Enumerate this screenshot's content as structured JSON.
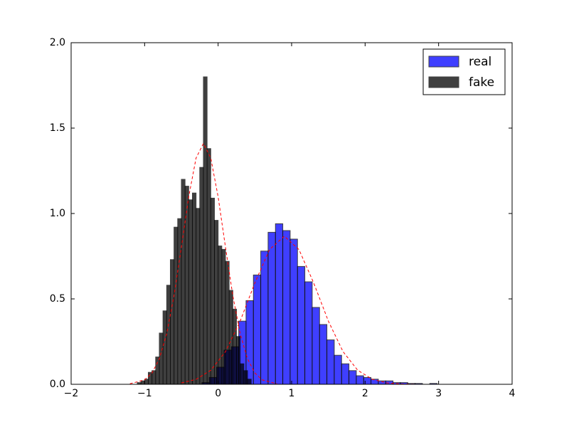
{
  "chart_data": {
    "type": "histogram",
    "xlim": [
      -2,
      4
    ],
    "ylim": [
      0,
      2
    ],
    "xticks": [
      {
        "value": -2,
        "label": "−2"
      },
      {
        "value": -1,
        "label": "−1"
      },
      0,
      1,
      2,
      3,
      4
    ],
    "yticks": [
      {
        "value": 0,
        "label": "0.0"
      },
      {
        "value": 0.5,
        "label": "0.5"
      },
      {
        "value": 1,
        "label": "1.0"
      },
      {
        "value": 1.5,
        "label": "1.5"
      },
      {
        "value": 2,
        "label": "2.0"
      }
    ],
    "legend": "upper right",
    "series": [
      {
        "name": "real",
        "color": "#0000ff",
        "alpha": 0.75,
        "bins": [
          -0.22,
          -0.12,
          -0.02,
          0.08,
          0.18,
          0.28,
          0.38,
          0.48,
          0.58,
          0.68,
          0.78,
          0.88,
          0.98,
          1.08,
          1.18,
          1.28,
          1.38,
          1.48,
          1.58,
          1.68,
          1.78,
          1.88,
          1.98,
          2.08,
          2.18,
          2.28,
          2.38,
          2.48,
          2.58,
          2.68,
          2.78,
          2.88,
          2.98
        ],
        "values": [
          0.01,
          0.04,
          0.1,
          0.2,
          0.22,
          0.37,
          0.49,
          0.64,
          0.78,
          0.89,
          0.94,
          0.9,
          0.85,
          0.69,
          0.6,
          0.45,
          0.35,
          0.26,
          0.17,
          0.12,
          0.08,
          0.05,
          0.04,
          0.03,
          0.02,
          0.02,
          0.01,
          0.01,
          0.005,
          0.005,
          0,
          0.005
        ]
      },
      {
        "name": "fake",
        "color": "#000000",
        "alpha": 0.75,
        "bins": [
          -1.1,
          -1.05,
          -1.0,
          -0.95,
          -0.9,
          -0.85,
          -0.8,
          -0.75,
          -0.7,
          -0.65,
          -0.6,
          -0.55,
          -0.5,
          -0.45,
          -0.4,
          -0.35,
          -0.3,
          -0.25,
          -0.2,
          -0.15,
          -0.1,
          -0.05,
          0.0,
          0.05,
          0.1,
          0.15,
          0.2,
          0.25,
          0.3,
          0.35,
          0.4,
          0.45
        ],
        "values": [
          0.01,
          0.02,
          0.03,
          0.07,
          0.08,
          0.16,
          0.3,
          0.43,
          0.58,
          0.73,
          0.92,
          0.97,
          1.2,
          1.16,
          1.08,
          1.12,
          1.03,
          1.27,
          1.8,
          1.38,
          1.09,
          0.96,
          0.81,
          0.79,
          0.72,
          0.55,
          0.44,
          0.28,
          0.12,
          0.08,
          0.03
        ]
      }
    ],
    "curves": [
      {
        "color": "#ff0000",
        "x": [
          -0.5,
          -0.3,
          -0.1,
          0.1,
          0.3,
          0.5,
          0.7,
          0.9,
          1.1,
          1.3,
          1.5,
          1.7,
          1.9,
          2.1,
          2.3,
          2.5,
          2.7
        ],
        "values": [
          0.008,
          0.029,
          0.082,
          0.191,
          0.37,
          0.594,
          0.789,
          0.867,
          0.789,
          0.594,
          0.37,
          0.191,
          0.082,
          0.029,
          0.008,
          0.002,
          0
        ]
      },
      {
        "color": "#ff0000",
        "x": [
          -1.2,
          -1.0,
          -0.9,
          -0.8,
          -0.7,
          -0.6,
          -0.5,
          -0.4,
          -0.3,
          -0.2,
          -0.1,
          0.0,
          0.1,
          0.2,
          0.3,
          0.4,
          0.5,
          0.6,
          0.8
        ],
        "values": [
          0.003,
          0.026,
          0.066,
          0.149,
          0.296,
          0.519,
          0.803,
          1.098,
          1.325,
          1.41,
          1.325,
          1.098,
          0.803,
          0.519,
          0.296,
          0.149,
          0.066,
          0.026,
          0.003
        ]
      }
    ]
  }
}
